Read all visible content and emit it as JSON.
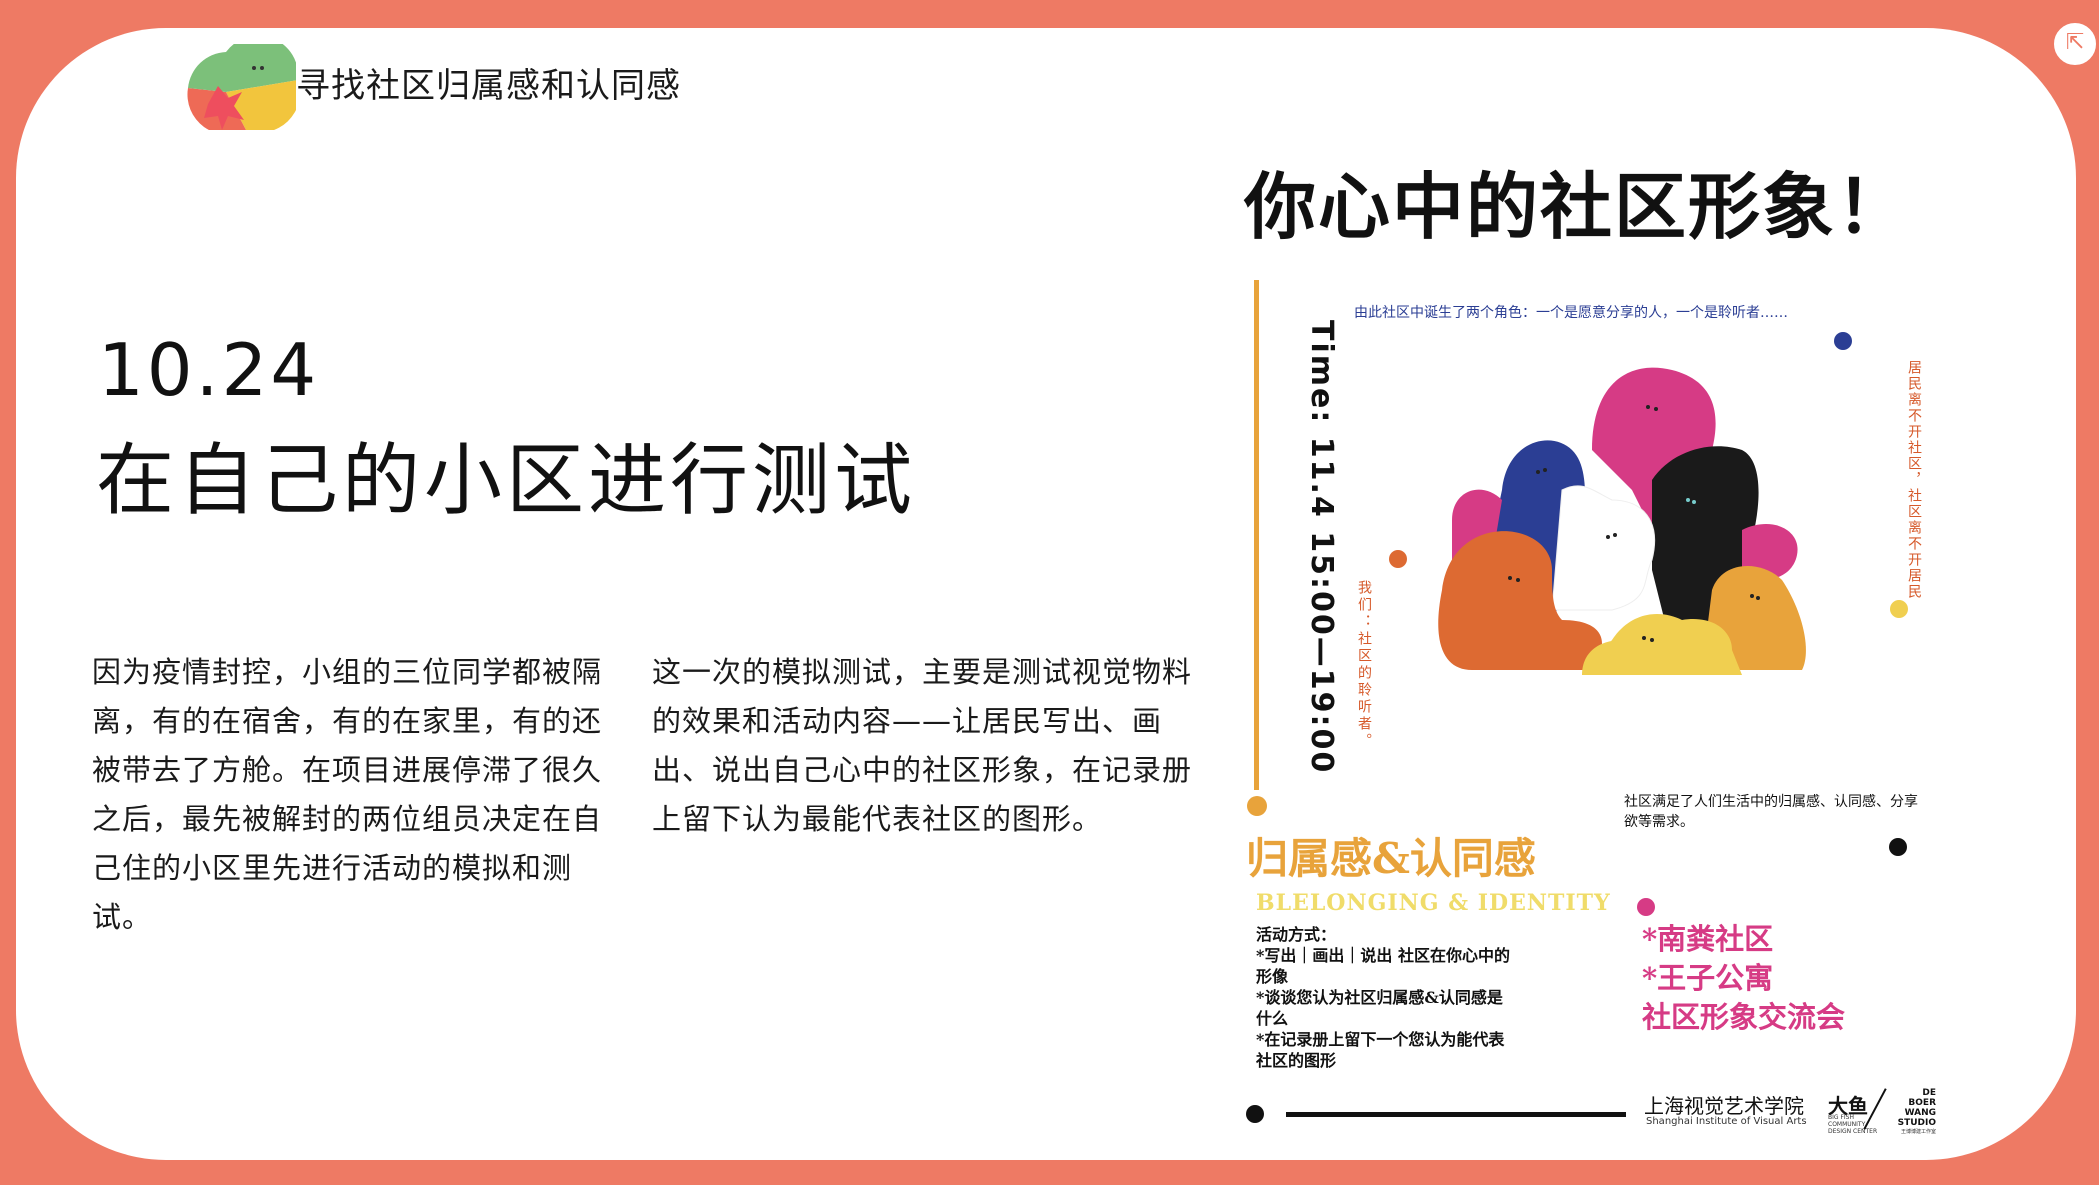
{
  "header": {
    "brand": "寻找社区归属感和认同感"
  },
  "main": {
    "date": "10.24",
    "heading": "在自己的小区进行测试",
    "para1": "因为疫情封控，小组的三位同学都被隔离，有的在宿舍，有的在家里，有的还被带去了方舱。在项目进展停滞了很久之后，最先被解封的两位组员决定在自己住的小区里先进行活动的模拟和测试。",
    "para2": "这一次的模拟测试，主要是测试视觉物料的效果和活动内容——让居民写出、画出、说出自己心中的社区形象，在记录册上留下认为最能代表社区的图形。"
  },
  "poster": {
    "title": "你心中的社区形象！",
    "time": "Time: 11.4  15:00—19:00",
    "intro": "由此社区中诞生了两个角色：一个是愿意分享的人，一个是聆听者……",
    "vtext_left": "我们：社区的聆听者。",
    "vtext_right": "居民离不开社区，社区离不开居民",
    "desc": "社区满足了人们生活中的归属感、认同感、分享欲等需求。",
    "big_title": "归属感&认同感",
    "english": "BLELONGING & IDENTITY",
    "activity": [
      "活动方式：",
      "*写出｜画出｜说出 社区在你心中的形像",
      "*谈谈您认为社区归属感&认同感是什么",
      "*在记录册上留下一个您认为能代表社区的图形"
    ],
    "venue": [
      "*南粪社区",
      "*王子公寓",
      "社区形象交流会"
    ],
    "institute": "上海视觉艺术学院",
    "institute_en": "Shanghai Institute of Visual Arts",
    "fish": "大鱼",
    "fish_sub": "BIG FISH COMMUNITY DESIGN CENTER",
    "studio": "DE BOER WANG STUDIO",
    "studio_sub": "王博博建工作室"
  },
  "colors": {
    "frame": "#ee7a64",
    "blue": "#2b3e94",
    "pink": "#d63b85",
    "orange": "#dd6a32",
    "yellow": "#f0cf50",
    "gold": "#e8a33b",
    "black": "#1a1a1a"
  },
  "icons": {
    "corner": "share-icon",
    "logo": "community-logo-icon"
  }
}
